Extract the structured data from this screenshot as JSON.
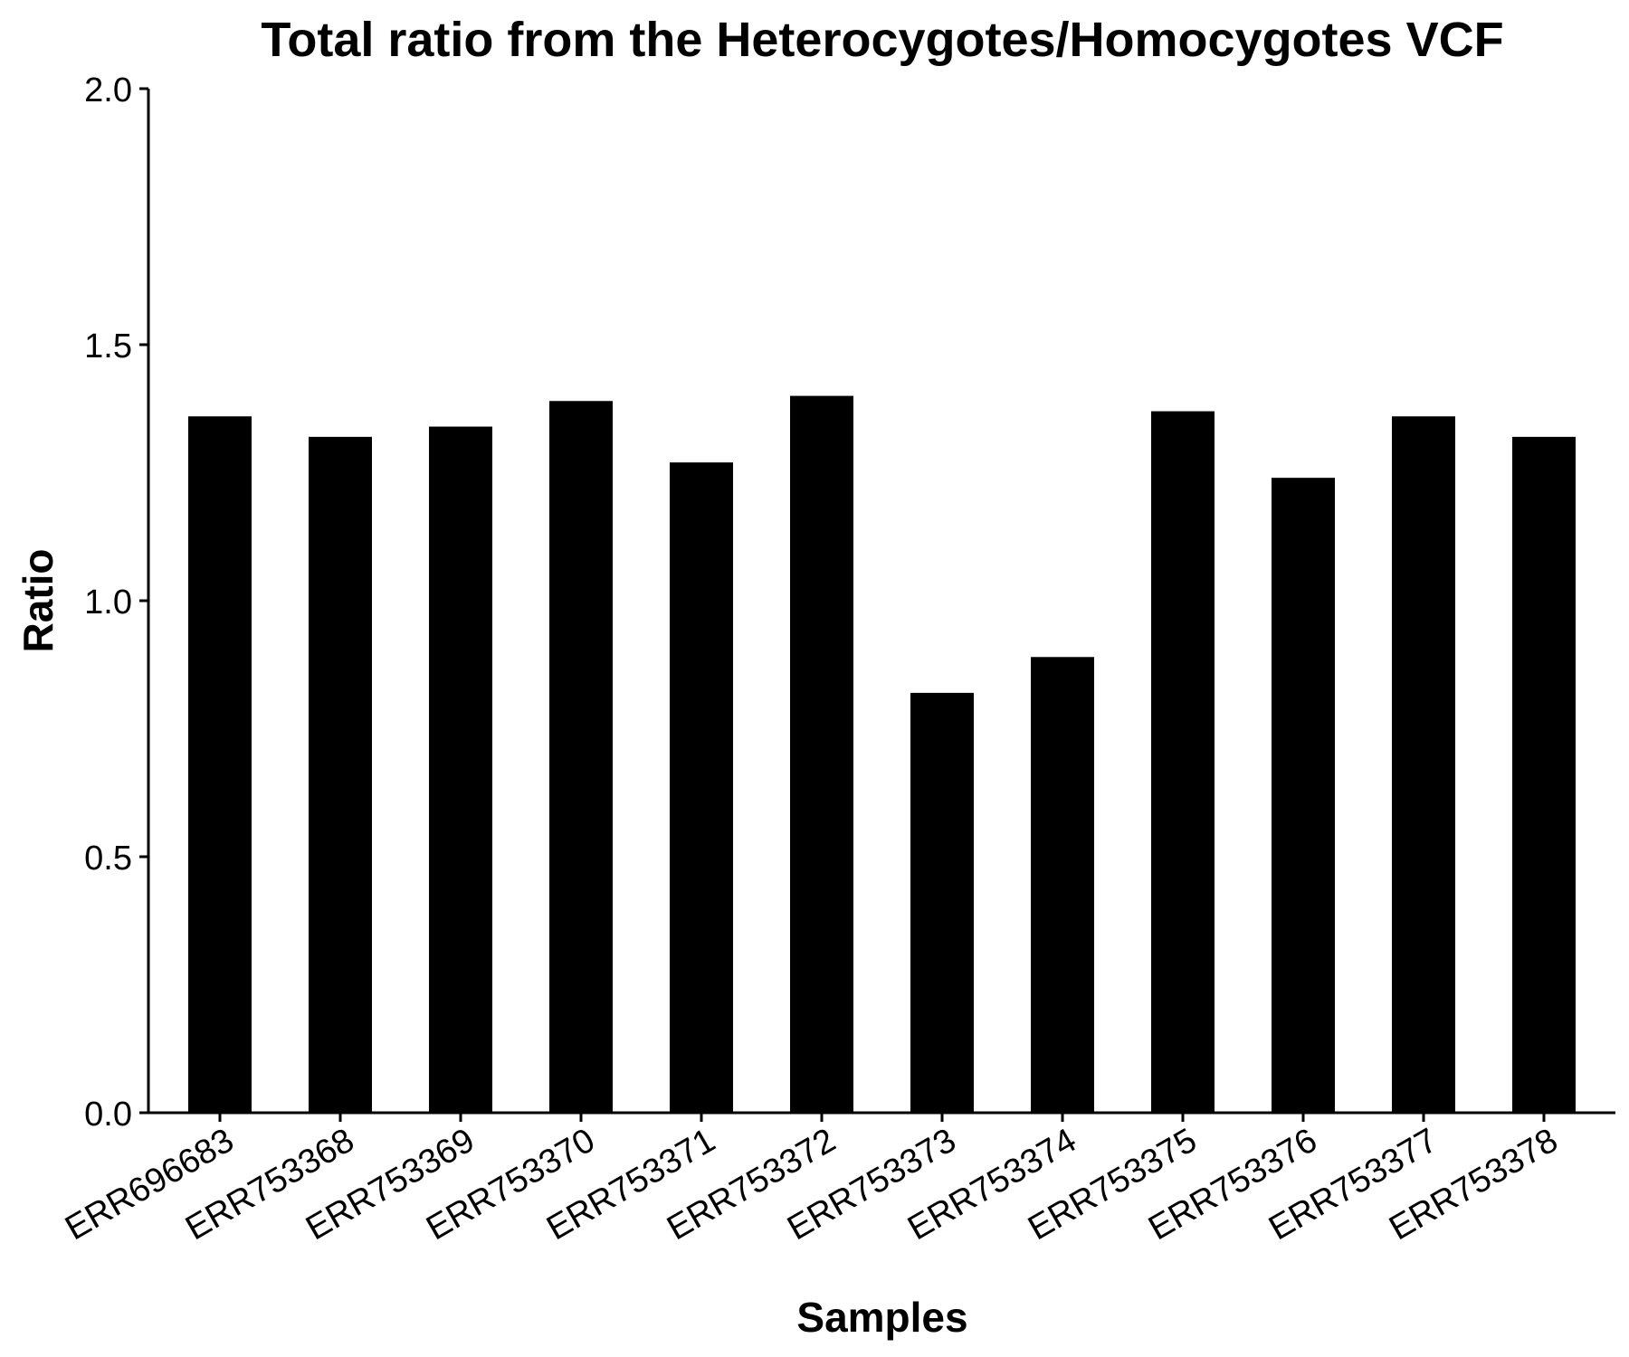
{
  "chart_data": {
    "type": "bar",
    "title": "Total ratio from the Heterocygotes/Homocygotes VCF",
    "xlabel": "Samples",
    "ylabel": "Ratio",
    "categories": [
      "ERR696683",
      "ERR753368",
      "ERR753369",
      "ERR753370",
      "ERR753371",
      "ERR753372",
      "ERR753373",
      "ERR753374",
      "ERR753375",
      "ERR753376",
      "ERR753377",
      "ERR753378"
    ],
    "series": [
      {
        "name": "Ratio",
        "values": [
          1.36,
          1.32,
          1.34,
          1.39,
          1.27,
          1.4,
          0.82,
          0.89,
          1.37,
          1.24,
          1.36,
          1.32
        ]
      }
    ],
    "ylim": [
      0,
      2.0
    ],
    "yticks": [
      "0.0",
      "0.5",
      "1.0",
      "1.5",
      "2.0"
    ],
    "grid": false,
    "legend": "none",
    "bar_color": "#000000"
  }
}
